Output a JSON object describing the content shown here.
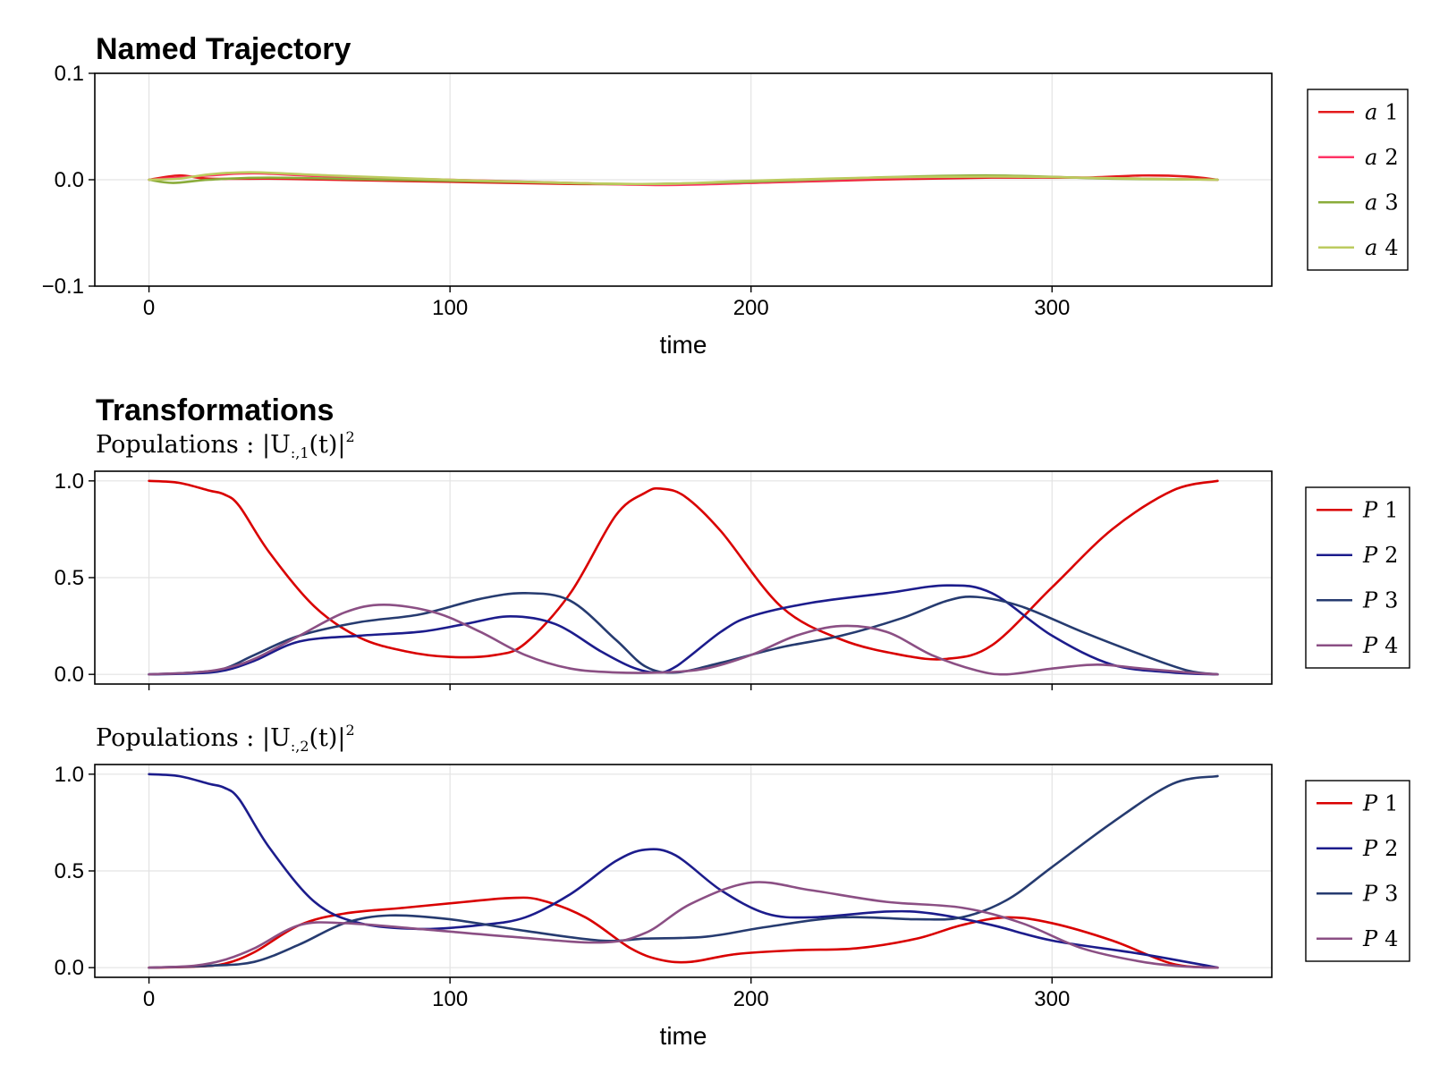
{
  "colors": {
    "red": "#e31a1c",
    "crimson": "#ff3366",
    "olive": "#8aac3a",
    "khaki": "#bccb5f",
    "darkred": "#d90000",
    "navy": "#1c1c8c",
    "slate": "#263b70",
    "mauve": "#8b4f84"
  },
  "chart_data": [
    {
      "type": "line",
      "title": "Named Trajectory",
      "subtitle": "",
      "xlabel": "time",
      "ylabel": "",
      "xlim": [
        -18,
        373
      ],
      "ylim": [
        -0.1,
        0.1
      ],
      "xticks": [
        0,
        100,
        200,
        300
      ],
      "xtick_labels": [
        "0",
        "100",
        "200",
        "300"
      ],
      "show_xtick_labels": true,
      "yticks": [
        -0.1,
        0.0,
        0.1
      ],
      "ytick_labels": [
        "−0.1",
        "0.0",
        "0.1"
      ],
      "legend_position": "right",
      "series": [
        {
          "name": "a 1",
          "legend_var": "a",
          "legend_idx": "1",
          "color": "#e31a1c",
          "x": [
            0,
            10,
            20,
            40,
            60,
            100,
            140,
            170,
            200,
            240,
            280,
            310,
            330,
            345,
            355
          ],
          "y": [
            0,
            0.004,
            0.001,
            0.001,
            0.0,
            -0.002,
            -0.004,
            -0.004,
            -0.003,
            0.0,
            0.002,
            0.002,
            0.004,
            0.003,
            0.0
          ]
        },
        {
          "name": "a 2",
          "legend_var": "a",
          "legend_idx": "2",
          "color": "#ff3366",
          "x": [
            0,
            10,
            20,
            35,
            60,
            100,
            140,
            170,
            200,
            240,
            280,
            310,
            330,
            355
          ],
          "y": [
            0,
            0.002,
            0.004,
            0.006,
            0.003,
            0.0,
            -0.003,
            -0.005,
            -0.003,
            0.001,
            0.003,
            0.002,
            0.001,
            0.0
          ]
        },
        {
          "name": "a 3",
          "legend_var": "a",
          "legend_idx": "3",
          "color": "#8aac3a",
          "x": [
            0,
            8,
            20,
            40,
            80,
            120,
            160,
            200,
            240,
            280,
            320,
            355
          ],
          "y": [
            0,
            -0.003,
            0.0,
            0.002,
            0.0,
            -0.002,
            -0.004,
            -0.002,
            0.002,
            0.004,
            0.001,
            0.0
          ]
        },
        {
          "name": "a 4",
          "legend_var": "a",
          "legend_idx": "4",
          "color": "#bccb5f",
          "x": [
            0,
            10,
            20,
            34,
            60,
            100,
            140,
            170,
            200,
            240,
            280,
            310,
            330,
            355
          ],
          "y": [
            0,
            0.001,
            0.005,
            0.007,
            0.004,
            0.0,
            -0.003,
            -0.004,
            -0.001,
            0.002,
            0.003,
            0.002,
            0.001,
            0.0
          ]
        }
      ]
    },
    {
      "type": "line",
      "title": "Transformations",
      "subtitle": "Populations :  |U",
      "subtitle_sub": ":,1",
      "subtitle_tail": "(t)|",
      "subtitle_sup": "2",
      "xlabel": "",
      "ylabel": "",
      "xlim": [
        -18,
        373
      ],
      "ylim": [
        -0.05,
        1.05
      ],
      "xticks": [
        0,
        100,
        200,
        300
      ],
      "xtick_labels": [
        "",
        "",
        "",
        ""
      ],
      "show_xtick_labels": false,
      "yticks": [
        0.0,
        0.5,
        1.0
      ],
      "ytick_labels": [
        "0.0",
        "0.5",
        "1.0"
      ],
      "legend_position": "right",
      "series": [
        {
          "name": "P 1",
          "legend_var": "P",
          "legend_idx": "1",
          "color": "#d90000",
          "x": [
            0,
            10,
            20,
            25,
            30,
            40,
            55,
            70,
            85,
            100,
            115,
            125,
            140,
            155,
            165,
            170,
            178,
            190,
            210,
            230,
            250,
            265,
            280,
            300,
            320,
            340,
            355
          ],
          "y": [
            1.0,
            0.99,
            0.95,
            0.93,
            0.87,
            0.63,
            0.35,
            0.19,
            0.12,
            0.09,
            0.1,
            0.16,
            0.42,
            0.82,
            0.94,
            0.96,
            0.92,
            0.74,
            0.35,
            0.18,
            0.1,
            0.08,
            0.15,
            0.45,
            0.75,
            0.95,
            1.0
          ]
        },
        {
          "name": "P 2",
          "legend_var": "P",
          "legend_idx": "2",
          "color": "#1c1c8c",
          "x": [
            0,
            15,
            25,
            35,
            50,
            70,
            90,
            105,
            120,
            135,
            150,
            160,
            168,
            175,
            190,
            200,
            220,
            245,
            265,
            280,
            300,
            320,
            340,
            355
          ],
          "y": [
            0.0,
            0.005,
            0.02,
            0.07,
            0.17,
            0.2,
            0.22,
            0.26,
            0.3,
            0.26,
            0.12,
            0.04,
            0.01,
            0.04,
            0.22,
            0.3,
            0.37,
            0.42,
            0.46,
            0.42,
            0.2,
            0.05,
            0.01,
            0.0
          ]
        },
        {
          "name": "P 3",
          "legend_var": "P",
          "legend_idx": "3",
          "color": "#263b70",
          "x": [
            0,
            15,
            25,
            35,
            50,
            70,
            90,
            110,
            125,
            140,
            155,
            165,
            175,
            190,
            210,
            230,
            250,
            265,
            275,
            290,
            310,
            330,
            345,
            355
          ],
          "y": [
            0.0,
            0.01,
            0.03,
            0.1,
            0.2,
            0.27,
            0.31,
            0.39,
            0.42,
            0.38,
            0.18,
            0.04,
            0.01,
            0.06,
            0.14,
            0.2,
            0.29,
            0.38,
            0.4,
            0.35,
            0.22,
            0.1,
            0.02,
            0.0
          ]
        },
        {
          "name": "P 4",
          "legend_var": "P",
          "legend_idx": "4",
          "color": "#8b4f84",
          "x": [
            0,
            15,
            25,
            35,
            50,
            65,
            78,
            95,
            110,
            125,
            140,
            155,
            170,
            185,
            200,
            215,
            230,
            245,
            260,
            275,
            285,
            300,
            315,
            330,
            345,
            355
          ],
          "y": [
            0.0,
            0.01,
            0.03,
            0.08,
            0.2,
            0.32,
            0.36,
            0.32,
            0.22,
            0.1,
            0.03,
            0.01,
            0.01,
            0.03,
            0.1,
            0.2,
            0.25,
            0.22,
            0.1,
            0.02,
            0.0,
            0.03,
            0.05,
            0.03,
            0.01,
            0.0
          ]
        }
      ]
    },
    {
      "type": "line",
      "title": "",
      "subtitle": "Populations :  |U",
      "subtitle_sub": ":,2",
      "subtitle_tail": "(t)|",
      "subtitle_sup": "2",
      "xlabel": "time",
      "ylabel": "",
      "xlim": [
        -18,
        373
      ],
      "ylim": [
        -0.05,
        1.05
      ],
      "xticks": [
        0,
        100,
        200,
        300
      ],
      "xtick_labels": [
        "0",
        "100",
        "200",
        "300"
      ],
      "show_xtick_labels": true,
      "yticks": [
        0.0,
        0.5,
        1.0
      ],
      "ytick_labels": [
        "0.0",
        "0.5",
        "1.0"
      ],
      "legend_position": "right",
      "series": [
        {
          "name": "P 1",
          "legend_var": "P",
          "legend_idx": "1",
          "color": "#d90000",
          "x": [
            0,
            15,
            25,
            35,
            50,
            65,
            85,
            105,
            120,
            130,
            145,
            160,
            170,
            180,
            195,
            215,
            235,
            255,
            270,
            285,
            300,
            320,
            340,
            355
          ],
          "y": [
            0.0,
            0.005,
            0.02,
            0.08,
            0.22,
            0.28,
            0.31,
            0.34,
            0.36,
            0.35,
            0.26,
            0.1,
            0.04,
            0.03,
            0.07,
            0.09,
            0.1,
            0.15,
            0.22,
            0.26,
            0.23,
            0.14,
            0.02,
            0.0
          ]
        },
        {
          "name": "P 2",
          "legend_var": "P",
          "legend_idx": "2",
          "color": "#1c1c8c",
          "x": [
            0,
            10,
            20,
            25,
            30,
            40,
            55,
            70,
            90,
            110,
            125,
            140,
            155,
            165,
            175,
            190,
            205,
            220,
            245,
            260,
            280,
            300,
            330,
            355
          ],
          "y": [
            1.0,
            0.99,
            0.95,
            0.93,
            0.87,
            0.62,
            0.34,
            0.23,
            0.2,
            0.22,
            0.26,
            0.38,
            0.55,
            0.61,
            0.58,
            0.4,
            0.28,
            0.26,
            0.29,
            0.28,
            0.22,
            0.14,
            0.07,
            0.0
          ]
        },
        {
          "name": "P 3",
          "legend_var": "P",
          "legend_idx": "3",
          "color": "#263b70",
          "x": [
            0,
            20,
            35,
            50,
            65,
            80,
            100,
            125,
            150,
            165,
            185,
            205,
            230,
            255,
            270,
            285,
            300,
            320,
            340,
            355
          ],
          "y": [
            0.0,
            0.01,
            0.03,
            0.12,
            0.23,
            0.27,
            0.25,
            0.19,
            0.14,
            0.15,
            0.16,
            0.21,
            0.26,
            0.25,
            0.26,
            0.35,
            0.52,
            0.75,
            0.95,
            0.99
          ]
        },
        {
          "name": "P 4",
          "legend_var": "P",
          "legend_idx": "4",
          "color": "#8b4f84",
          "x": [
            0,
            15,
            25,
            35,
            50,
            65,
            90,
            120,
            150,
            165,
            180,
            200,
            220,
            245,
            270,
            290,
            310,
            330,
            345,
            355
          ],
          "y": [
            0.0,
            0.01,
            0.04,
            0.1,
            0.22,
            0.23,
            0.2,
            0.16,
            0.13,
            0.18,
            0.33,
            0.44,
            0.4,
            0.34,
            0.31,
            0.23,
            0.1,
            0.03,
            0.005,
            0.0
          ]
        }
      ]
    }
  ]
}
